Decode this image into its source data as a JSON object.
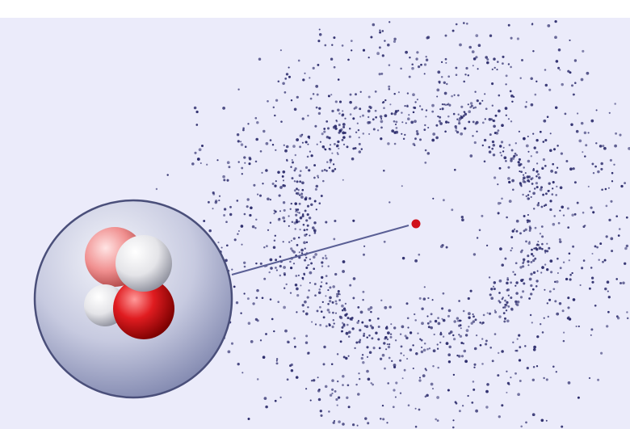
{
  "scene": {
    "background": "#ebebfa",
    "top_band": "#ffffff",
    "particle_color": "#2b2b6b",
    "highlight_particle_color": "#d0101a",
    "leader_line_color": "#5a5f95",
    "bubble_gradient": [
      "#f4f5fb",
      "#c7cae0",
      "#7e85ad"
    ],
    "bubble_outline": "#4a4f7a",
    "molecule_colors": {
      "oxygen_atom": "#e01c20",
      "oxygen_atom_pale": "#f08f8f",
      "hydrogen_atom": "#e4e4e8"
    }
  }
}
